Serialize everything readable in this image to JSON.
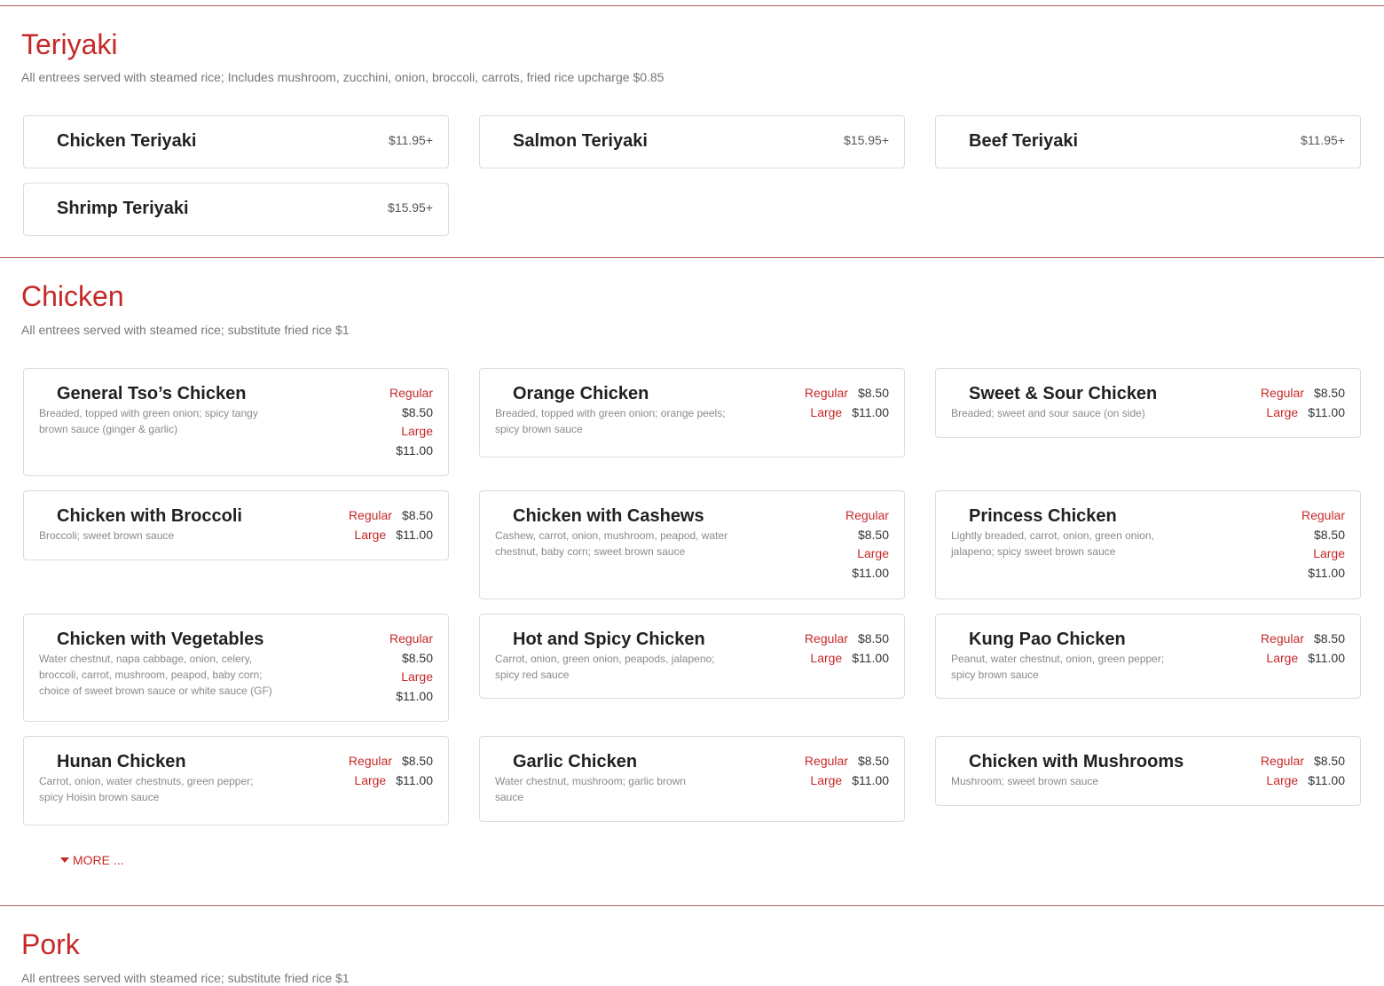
{
  "teriyaki": {
    "title": "Teriyaki",
    "description": "All entrees served with steamed rice; Includes mushroom, zucchini, onion, broccoli, carrots, fried rice upcharge $0.85",
    "items": [
      {
        "name": "Chicken Teriyaki",
        "price": "$11.95+"
      },
      {
        "name": "Salmon Teriyaki",
        "price": "$15.95+"
      },
      {
        "name": "Beef Teriyaki",
        "price": "$11.95+"
      },
      {
        "name": "Shrimp Teriyaki",
        "price": "$15.95+"
      }
    ]
  },
  "chicken": {
    "title": "Chicken",
    "description": "All entrees served with steamed rice; substitute fried rice $1",
    "regular_label": "Regular",
    "large_label": "Large",
    "regular_price": "$8.50",
    "large_price": "$11.00",
    "items": [
      {
        "name": "General Tso’s Chicken",
        "desc": "Breaded, topped with green onion; spicy tangy brown sauce (ginger & garlic)"
      },
      {
        "name": "Orange Chicken",
        "desc": "Breaded, topped with green onion; orange peels; spicy brown sauce"
      },
      {
        "name": "Sweet & Sour Chicken",
        "desc": "Breaded; sweet and sour sauce (on side)"
      },
      {
        "name": "Chicken with Broccoli",
        "desc": "Broccoli; sweet brown sauce"
      },
      {
        "name": "Chicken with Cashews",
        "desc": "Cashew, carrot, onion, mushroom, peapod, water chestnut, baby corn; sweet brown sauce"
      },
      {
        "name": "Princess Chicken",
        "desc": "Lightly breaded, carrot, onion, green onion, jalapeno; spicy sweet brown sauce"
      },
      {
        "name": "Chicken with Vegetables",
        "desc": "Water chestnut, napa cabbage, onion, celery, broccoli, carrot, mushroom, peapod, baby corn; choice of sweet brown sauce or white sauce (GF)"
      },
      {
        "name": "Hot and Spicy Chicken",
        "desc": "Carrot, onion, green onion, peapods, jalapeno; spicy red sauce"
      },
      {
        "name": "Kung Pao Chicken",
        "desc": "Peanut, water chestnut, onion, green pepper; spicy brown sauce"
      },
      {
        "name": "Hunan Chicken",
        "desc": "Carrot, onion, water chestnuts, green pepper; spicy Hoisin brown sauce"
      },
      {
        "name": "Garlic Chicken",
        "desc": "Water chestnut, mushroom; garlic brown sauce"
      },
      {
        "name": "Chicken with Mushrooms",
        "desc": "Mushroom; sweet brown sauce"
      }
    ],
    "more_label": "MORE ..."
  },
  "pork": {
    "title": "Pork",
    "description": "All entrees served with steamed rice; substitute fried rice $1"
  },
  "colors": {
    "accent": "#c62828",
    "divider": "#b55a5a",
    "card_border": "#dcdcdc"
  }
}
